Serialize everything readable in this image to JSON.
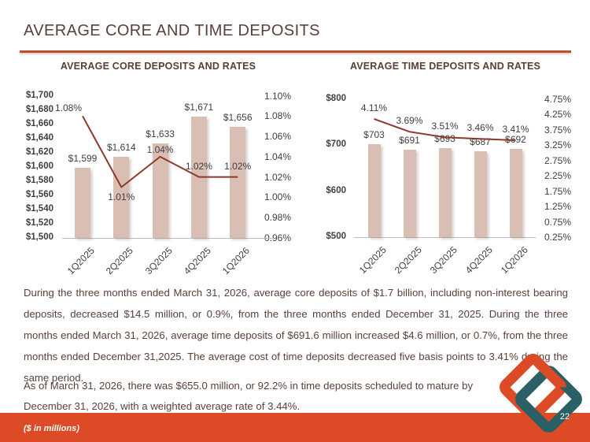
{
  "slide": {
    "title": "AVERAGE CORE AND TIME DEPOSITS",
    "colors": {
      "accent_orange": "#DC4A26",
      "accent_teal": "#2A5F66",
      "bar_fill": "#D9BEB4",
      "line_color": "#8C392A",
      "heading_text": "#594139",
      "axis_text": "#3F3F3F"
    }
  },
  "footer": {
    "note": "($ in millions)",
    "page_number": "22"
  },
  "logo": {
    "name": "interlocking-diamonds-logo",
    "colors": [
      "#DC4A26",
      "#2A5F66"
    ]
  },
  "paragraphs": [
    "During the three months ended March 31, 2026, average core deposits of $1.7 billion, including non-interest bearing deposits, decreased $14.5 million, or 0.9%, from the three months ended December 31, 2025. During the three months ended March 31, 2026, average time deposits of $691.6 million increased $4.6 million, or 0.7%, from the three months ended December 31,2025. The average cost of time deposits decreased five basis points to 3.41% during the same period.",
    "As of March 31, 2026, there was $655.0 million, or 92.2% in time deposits scheduled to mature by December 31, 2026, with a weighted average rate of 3.44%."
  ],
  "chart_data": [
    {
      "type": "bar",
      "title": "AVERAGE CORE DEPOSITS AND RATES",
      "categories": [
        "1Q2025",
        "2Q2025",
        "3Q2025",
        "4Q2025",
        "1Q2026"
      ],
      "series": [
        {
          "name": "Average core deposits ($ millions)",
          "type": "bar",
          "axis": "left",
          "values": [
            1599,
            1614,
            1633,
            1671,
            1656
          ],
          "labels": [
            "$1,599",
            "$1,614",
            "$1,633",
            "$1,671",
            "$1,656"
          ]
        },
        {
          "name": "Cost of core deposits (%)",
          "type": "line",
          "axis": "right",
          "values": [
            1.08,
            1.01,
            1.04,
            1.02,
            1.02
          ],
          "labels": [
            "1.08%",
            "1.01%",
            "1.04%",
            "1.02%",
            "1.02%"
          ],
          "label_placement": [
            "above-left",
            "below",
            "above-tight",
            "above",
            "above"
          ]
        }
      ],
      "left_axis": {
        "min": 1500,
        "max": 1700,
        "step": 20,
        "ticks": [
          "$1,700",
          "$1,680",
          "$1,660",
          "$1,640",
          "$1,620",
          "$1,600",
          "$1,580",
          "$1,560",
          "$1,540",
          "$1,520",
          "$1,500"
        ]
      },
      "right_axis": {
        "min": 0.96,
        "max": 1.1,
        "step": 0.02,
        "ticks": [
          "1.10%",
          "1.08%",
          "1.06%",
          "1.04%",
          "1.02%",
          "1.00%",
          "0.98%",
          "0.96%"
        ]
      },
      "grid": false,
      "legend": "none"
    },
    {
      "type": "bar",
      "title": "AVERAGE TIME DEPOSITS AND RATES",
      "categories": [
        "1Q2025",
        "2Q2025",
        "3Q2025",
        "4Q2025",
        "1Q2026"
      ],
      "series": [
        {
          "name": "Average time deposits ($ millions)",
          "type": "bar",
          "axis": "left",
          "values": [
            703,
            691,
            693,
            687,
            692
          ],
          "labels": [
            "$703",
            "$691",
            "$693",
            "$687",
            "$692"
          ]
        },
        {
          "name": "Cost of time deposits (%)",
          "type": "line",
          "axis": "right",
          "values": [
            4.11,
            3.69,
            3.51,
            3.46,
            3.41
          ],
          "labels": [
            "4.11%",
            "3.69%",
            "3.51%",
            "3.46%",
            "3.41%"
          ],
          "label_placement": [
            "above",
            "above",
            "above",
            "above",
            "above"
          ]
        }
      ],
      "left_axis": {
        "min": 500,
        "max": 800,
        "step": 100,
        "ticks": [
          "$800",
          "$700",
          "$600",
          "$500"
        ]
      },
      "right_axis": {
        "min": 0.25,
        "max": 4.75,
        "step": 0.5,
        "ticks": [
          "4.75%",
          "4.25%",
          "3.75%",
          "3.25%",
          "2.75%",
          "2.25%",
          "1.75%",
          "1.25%",
          "0.75%",
          "0.25%"
        ]
      },
      "grid": false,
      "legend": "none"
    }
  ]
}
